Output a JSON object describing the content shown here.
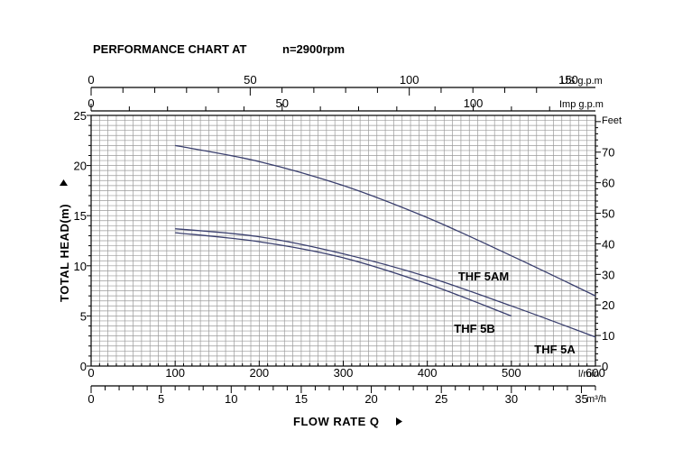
{
  "chart_data": {
    "type": "line",
    "title": "PERFORMANCE CHART AT",
    "speed": "n=2900rpm",
    "xlabel": "FLOW RATE Q",
    "ylabel": "TOTAL HEAD(m)",
    "x_unit": "l/min",
    "xlim": [
      0,
      600
    ],
    "ylim": [
      0,
      25
    ],
    "x_ticks": [
      0,
      100,
      200,
      300,
      400,
      500,
      600
    ],
    "y_ticks": [
      0,
      5,
      10,
      15,
      20,
      25
    ],
    "secondary_axes": {
      "us_gpm": {
        "unit": "US g.p.m",
        "ticks": [
          0,
          50,
          100,
          150
        ]
      },
      "imp_gpm": {
        "unit": "Imp g.p.m",
        "ticks": [
          0,
          50,
          100
        ]
      },
      "feet": {
        "unit": "Feet",
        "ticks": [
          0,
          10,
          20,
          30,
          40,
          50,
          60,
          70
        ]
      },
      "m3h": {
        "unit": "m³/h",
        "ticks": [
          0,
          5,
          10,
          15,
          20,
          25,
          30,
          35
        ]
      }
    },
    "grid": true,
    "series": [
      {
        "name": "THF 5AM",
        "x": [
          100,
          200,
          300,
          400,
          500,
          600
        ],
        "y": [
          22.0,
          20.4,
          18.0,
          14.8,
          11.0,
          7.0
        ]
      },
      {
        "name": "THF 5A",
        "x": [
          100,
          200,
          300,
          400,
          500,
          600
        ],
        "y": [
          13.7,
          12.9,
          11.2,
          8.9,
          6.0,
          2.9
        ]
      },
      {
        "name": "THF 5B",
        "x": [
          100,
          200,
          300,
          400,
          500
        ],
        "y": [
          13.3,
          12.4,
          10.8,
          8.2,
          5.0
        ]
      }
    ]
  }
}
